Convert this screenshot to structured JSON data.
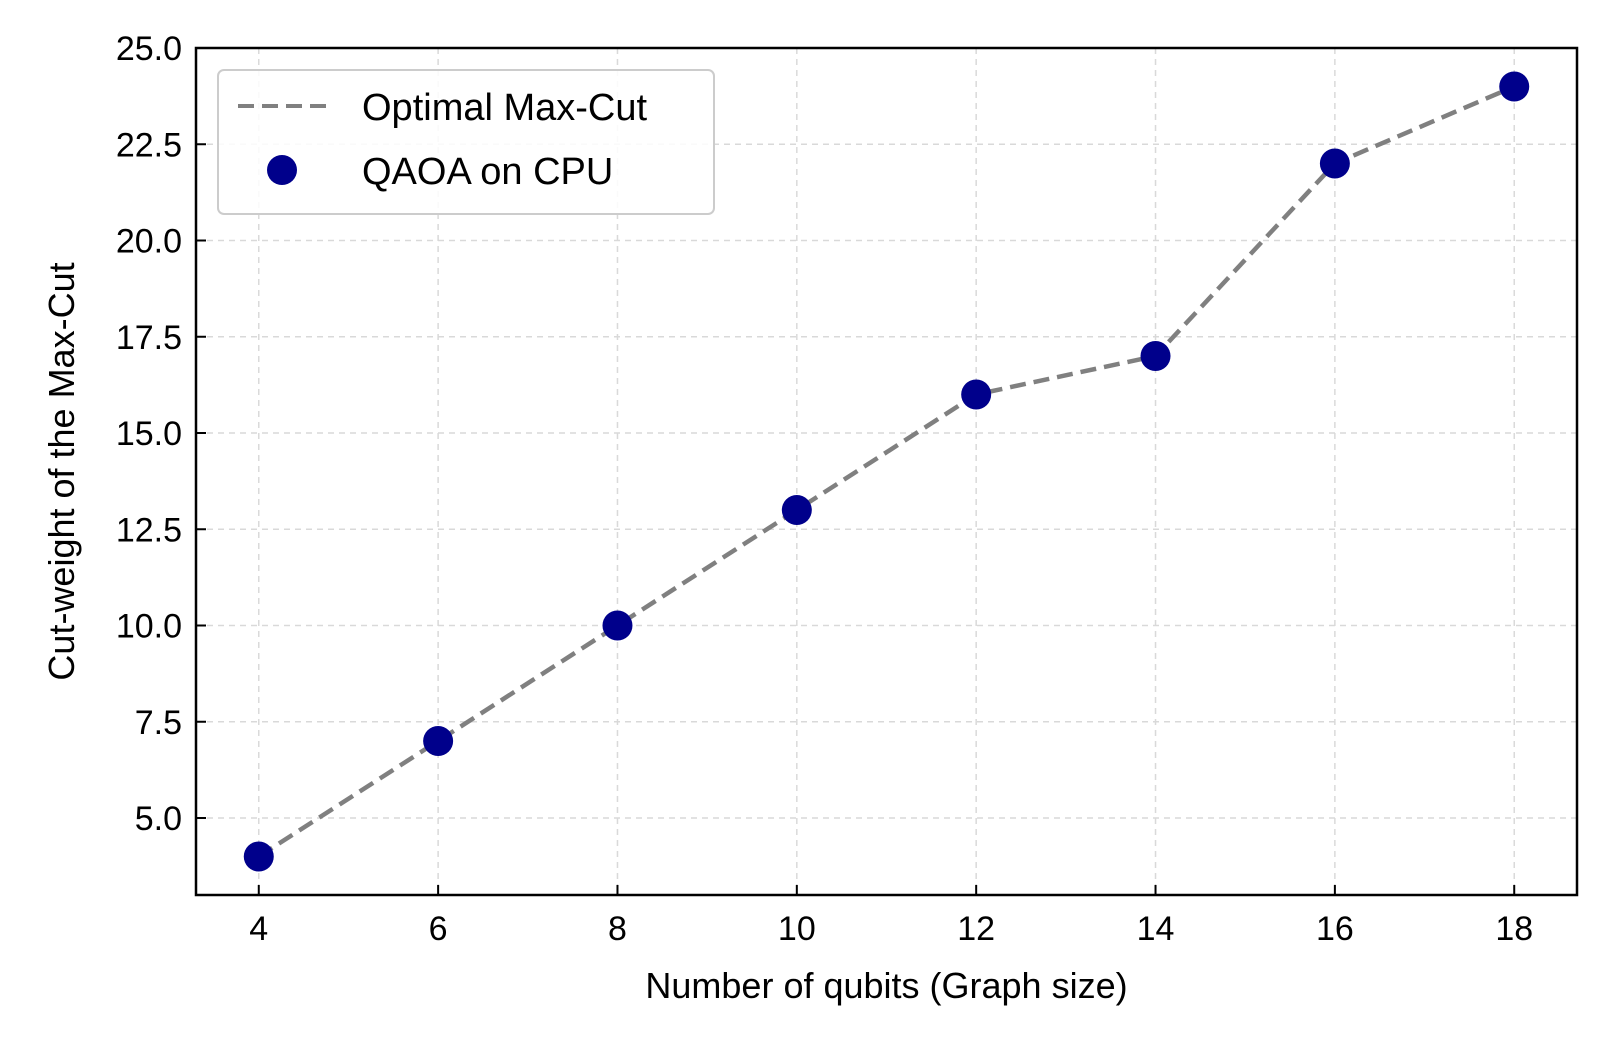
{
  "chart_data": {
    "type": "line",
    "title": "",
    "xlabel": "Number of qubits (Graph size)",
    "ylabel": "Cut-weight of the Max-Cut",
    "xlim": [
      3.3,
      18.7
    ],
    "ylim": [
      3.0,
      25.0
    ],
    "x_ticks": [
      4,
      6,
      8,
      10,
      12,
      14,
      16,
      18
    ],
    "x_tick_labels": [
      "4",
      "6",
      "8",
      "10",
      "12",
      "14",
      "16",
      "18"
    ],
    "y_ticks": [
      5.0,
      7.5,
      10.0,
      12.5,
      15.0,
      17.5,
      20.0,
      22.5,
      25.0
    ],
    "y_tick_labels": [
      "5.0",
      "7.5",
      "10.0",
      "12.5",
      "15.0",
      "17.5",
      "20.0",
      "22.5",
      "25.0"
    ],
    "grid": true,
    "legend_position": "top-left",
    "x": [
      4,
      6,
      8,
      10,
      12,
      14,
      16,
      18
    ],
    "series": [
      {
        "name": "Optimal Max-Cut",
        "style": "dashed-line",
        "color": "#808080",
        "values": [
          4,
          7,
          10,
          13,
          16,
          17,
          22,
          24
        ]
      },
      {
        "name": "QAOA on CPU",
        "style": "markers",
        "color": "#00008b",
        "values": [
          4,
          7,
          10,
          13,
          16,
          17,
          22,
          24
        ]
      }
    ]
  }
}
